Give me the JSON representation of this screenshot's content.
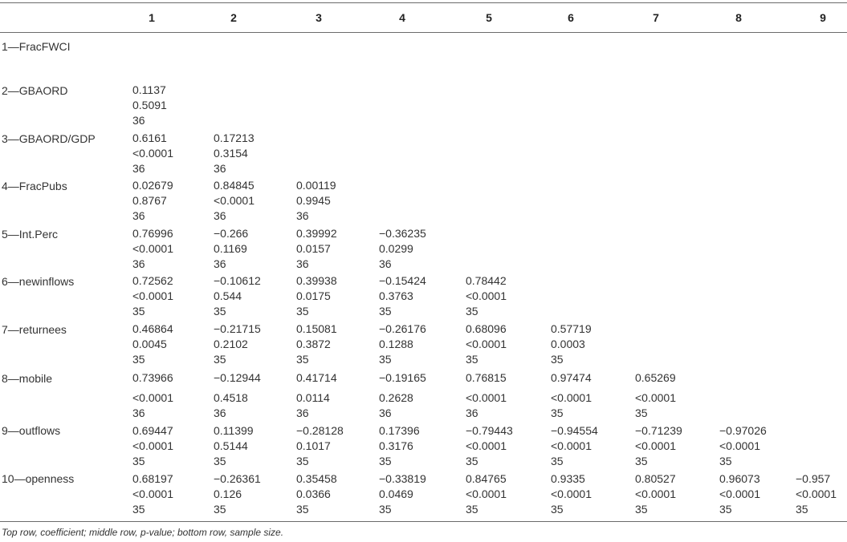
{
  "table": {
    "columns": [
      "1",
      "2",
      "3",
      "4",
      "5",
      "6",
      "7",
      "8",
      "9"
    ],
    "rows": [
      {
        "label": "1—FracFWCI",
        "cells": []
      },
      {
        "label": "2—GBAORD",
        "cells": [
          [
            "0.1137",
            "0.5091",
            "36"
          ]
        ]
      },
      {
        "label": "3—GBAORD/GDP",
        "cells": [
          [
            "0.6161",
            "<0.0001",
            "36"
          ],
          [
            "0.17213",
            "0.3154",
            "36"
          ]
        ]
      },
      {
        "label": "4—FracPubs",
        "cells": [
          [
            "0.02679",
            "0.8767",
            "36"
          ],
          [
            "0.84845",
            "<0.0001",
            "36"
          ],
          [
            "0.00119",
            "0.9945",
            "36"
          ]
        ]
      },
      {
        "label": "5—Int.Perc",
        "cells": [
          [
            "0.76996",
            "<0.0001",
            "36"
          ],
          [
            "−0.266",
            "0.1169",
            "36"
          ],
          [
            "0.39992",
            "0.0157",
            "36"
          ],
          [
            "−0.36235",
            "0.0299",
            "36"
          ]
        ]
      },
      {
        "label": "6—newinflows",
        "cells": [
          [
            "0.72562",
            "<0.0001",
            "35"
          ],
          [
            "−0.10612",
            "0.544",
            "35"
          ],
          [
            "0.39938",
            "0.0175",
            "35"
          ],
          [
            "−0.15424",
            "0.3763",
            "35"
          ],
          [
            "0.78442",
            "<0.0001",
            "35"
          ]
        ]
      },
      {
        "label": "7—returnees",
        "cells": [
          [
            "0.46864",
            "0.0045",
            "35"
          ],
          [
            "−0.21715",
            "0.2102",
            "35"
          ],
          [
            "0.15081",
            "0.3872",
            "35"
          ],
          [
            "−0.26176",
            "0.1288",
            "35"
          ],
          [
            "0.68096",
            "<0.0001",
            "35"
          ],
          [
            "0.57719",
            "0.0003",
            "35"
          ]
        ]
      },
      {
        "label": "8—mobile",
        "cells": [
          [
            "0.73966",
            "<0.0001",
            "36"
          ],
          [
            "−0.12944",
            "0.4518",
            "36"
          ],
          [
            "0.41714",
            "0.0114",
            "36"
          ],
          [
            "−0.19165",
            "0.2628",
            "36"
          ],
          [
            "0.76815",
            "<0.0001",
            "36"
          ],
          [
            "0.97474",
            "<0.0001",
            "35"
          ],
          [
            "0.65269",
            "<0.0001",
            "35"
          ]
        ]
      },
      {
        "label": "9—outflows",
        "cells": [
          [
            "0.69447",
            "<0.0001",
            "35"
          ],
          [
            "0.11399",
            "0.5144",
            "35"
          ],
          [
            "−0.28128",
            "0.1017",
            "35"
          ],
          [
            "0.17396",
            "0.3176",
            "35"
          ],
          [
            "−0.79443",
            "<0.0001",
            "35"
          ],
          [
            "−0.94554",
            "<0.0001",
            "35"
          ],
          [
            "−0.71239",
            "<0.0001",
            "35"
          ],
          [
            "−0.97026",
            "<0.0001",
            "35"
          ]
        ]
      },
      {
        "label": "10—openness",
        "cells": [
          [
            "0.68197",
            "<0.0001",
            "35"
          ],
          [
            "−0.26361",
            "0.126",
            "35"
          ],
          [
            "0.35458",
            "0.0366",
            "35"
          ],
          [
            "−0.33819",
            "0.0469",
            "35"
          ],
          [
            "0.84765",
            "<0.0001",
            "35"
          ],
          [
            "0.9335",
            "<0.0001",
            "35"
          ],
          [
            "0.80527",
            "<0.0001",
            "35"
          ],
          [
            "0.96073",
            "<0.0001",
            "35"
          ],
          [
            "−0.957",
            "<0.0001",
            "35"
          ]
        ]
      }
    ]
  },
  "footnote": "Top row, coefficient; middle row, p-value; bottom row, sample size."
}
